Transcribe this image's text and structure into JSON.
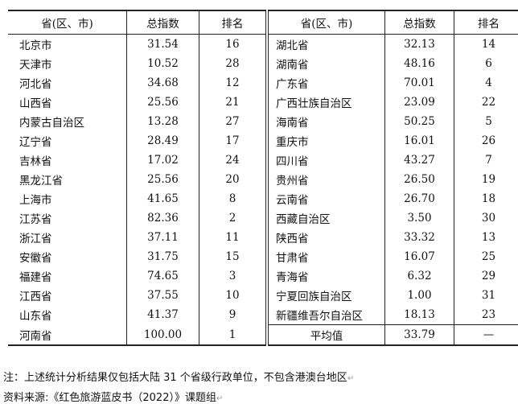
{
  "headers": [
    "省(区、市)",
    "总指数",
    "排名",
    "省(区、市)",
    "总指数",
    "排名"
  ],
  "left_rows": [
    [
      "北京市",
      "31.54",
      "16"
    ],
    [
      "天津市",
      "10.52",
      "28"
    ],
    [
      "河北省",
      "34.68",
      "12"
    ],
    [
      "山西省",
      "25.56",
      "21"
    ],
    [
      "内蒙古自治区",
      "13.28",
      "27"
    ],
    [
      "辽宁省",
      "28.49",
      "17"
    ],
    [
      "吉林省",
      "17.02",
      "24"
    ],
    [
      "黑龙江省",
      "25.56",
      "20"
    ],
    [
      "上海市",
      "41.65",
      "8"
    ],
    [
      "江苏省",
      "82.36",
      "2"
    ],
    [
      "浙江省",
      "37.11",
      "11"
    ],
    [
      "安徽省",
      "31.75",
      "15"
    ],
    [
      "福建省",
      "74.65",
      "3"
    ],
    [
      "江西省",
      "37.55",
      "10"
    ],
    [
      "山东省",
      "41.37",
      "9"
    ],
    [
      "河南省",
      "100.00",
      "1"
    ]
  ],
  "right_rows": [
    [
      "湖北省",
      "32.13",
      "14"
    ],
    [
      "湖南省",
      "48.16",
      "6"
    ],
    [
      "广东省",
      "70.01",
      "4"
    ],
    [
      "广西壮族自治区",
      "23.09",
      "22"
    ],
    [
      "海南省",
      "50.25",
      "5"
    ],
    [
      "重庆市",
      "16.01",
      "26"
    ],
    [
      "四川省",
      "43.27",
      "7"
    ],
    [
      "贵州省",
      "26.50",
      "19"
    ],
    [
      "云南省",
      "26.70",
      "18"
    ],
    [
      "西藏自治区",
      "3.50",
      "30"
    ],
    [
      "陕西省",
      "33.32",
      "13"
    ],
    [
      "甘肃省",
      "16.07",
      "25"
    ],
    [
      "青海省",
      "6.32",
      "29"
    ],
    [
      "宁夏回族自治区",
      "1.00",
      "31"
    ],
    [
      "新疆维吾尔自治区",
      "18.13",
      "23"
    ],
    [
      "平均值",
      "33.79",
      "—"
    ]
  ],
  "note": "注：上述统计分析结果仅包括大陆 31 个省级行政单位，不包含港澳台地区",
  "source": "资料来源:《红色旅游蓝皮书（2022）》课题组",
  "return_mark": "↵"
}
